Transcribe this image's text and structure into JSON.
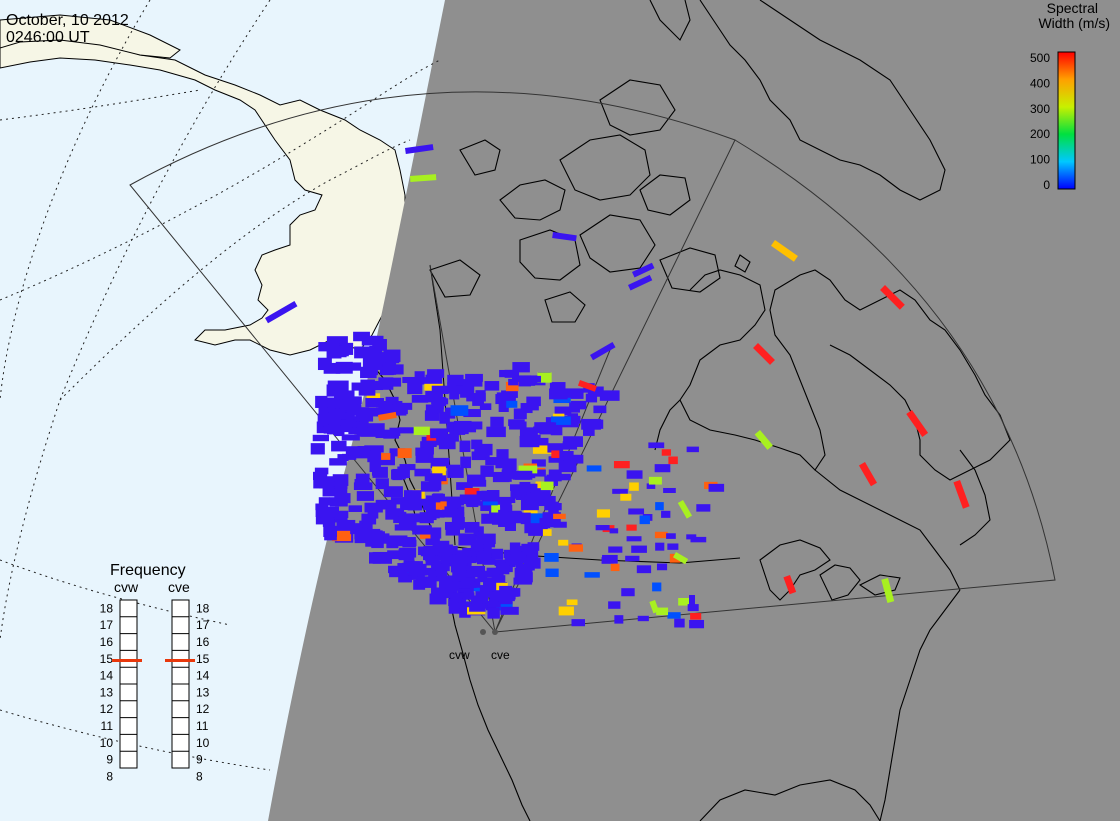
{
  "header": {
    "date": "October, 10 2012",
    "time": "0246:00 UT"
  },
  "colorbar": {
    "title_line1": "Spectral",
    "title_line2": "Width (m/s)",
    "ticks": [
      "500",
      "400",
      "300",
      "200",
      "100",
      "0"
    ],
    "min": 0,
    "max": 500
  },
  "frequency": {
    "title": "Frequency",
    "radars": [
      {
        "name": "cvw",
        "value_mhz": 14.9
      },
      {
        "name": "cve",
        "value_mhz": 14.9
      }
    ],
    "ticks": [
      "18",
      "17",
      "16",
      "15",
      "14",
      "13",
      "12",
      "11",
      "10",
      "9",
      "8"
    ],
    "indicator_color": "#e8380c"
  },
  "stations": [
    {
      "name": "cvw"
    },
    {
      "name": "cve"
    }
  ],
  "colors": {
    "night_shade": "#8f8f8f",
    "ocean_day": "#e8f5fd",
    "land_day": "#f6f6e6",
    "scatter_low": "#3a14f0"
  }
}
